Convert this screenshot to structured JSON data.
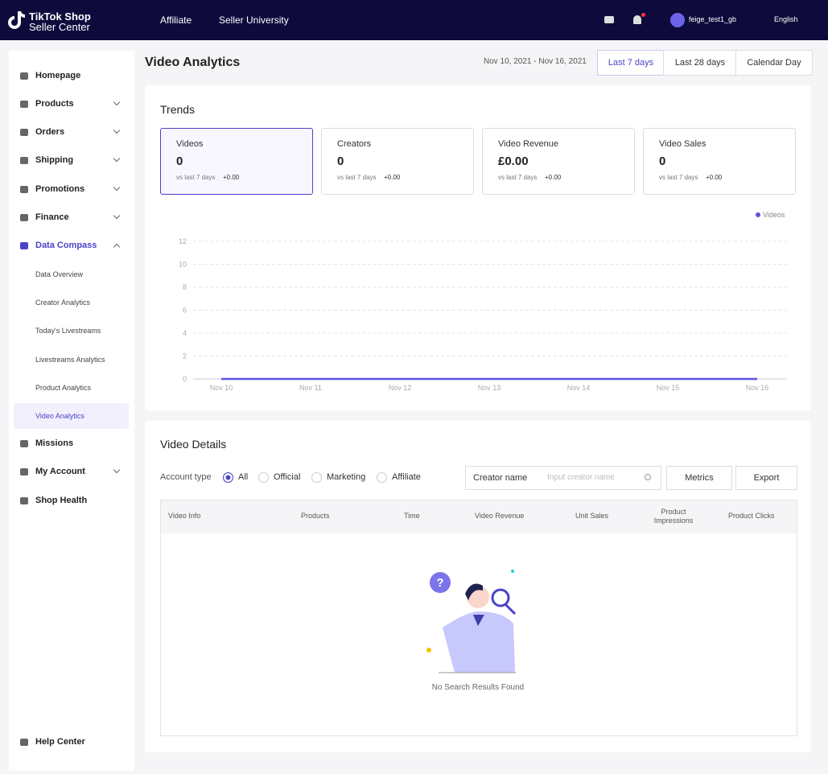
{
  "header": {
    "logo_top": "TikTok Shop",
    "logo_bottom": "Seller Center",
    "nav": [
      "Affiliate",
      "Seller University"
    ],
    "user": "feige_test1_gb",
    "language": "English"
  },
  "sidebar": {
    "items": [
      "Homepage",
      "Products",
      "Orders",
      "Shipping",
      "Promotions",
      "Finance",
      "Data Compass"
    ],
    "sub_items": [
      "Data Overview",
      "Creator Analytics",
      "Today's Livestreams",
      "Livestreams Analytics",
      "Product Analytics",
      "Video Analytics"
    ],
    "bottom_items": [
      "Missions",
      "My Account",
      "Shop Health"
    ],
    "help": "Help Center"
  },
  "page": {
    "title": "Video Analytics",
    "date_range": "Nov 10, 2021 - Nov 16, 2021",
    "ranges": [
      "Last 7 days",
      "Last 28 days",
      "Calendar Day"
    ]
  },
  "trends": {
    "title": "Trends",
    "cards": [
      {
        "label": "Videos",
        "value": "0",
        "compare": "vs last 7 days",
        "delta": "+0.00"
      },
      {
        "label": "Creators",
        "value": "0",
        "compare": "vs last 7 days",
        "delta": "+0.00"
      },
      {
        "label": "Video Revenue",
        "value": "£0.00",
        "compare": "vs last 7 days",
        "delta": "+0.00"
      },
      {
        "label": "Video Sales",
        "value": "0",
        "compare": "vs last 7 days",
        "delta": "+0.00"
      }
    ]
  },
  "chart_data": {
    "type": "line",
    "categories": [
      "Nov 10",
      "Nov 11",
      "Nov 12",
      "Nov 13",
      "Nov 14",
      "Nov 15",
      "Nov 16"
    ],
    "series": [
      {
        "name": "Videos",
        "color": "#5b52e0",
        "values": [
          0,
          0,
          0,
          0,
          0,
          0,
          0
        ]
      }
    ],
    "ylim": [
      0,
      12
    ],
    "yticks": [
      0,
      2,
      4,
      6,
      8,
      10,
      12
    ],
    "grid": true,
    "legend": "top-right"
  },
  "details": {
    "title": "Video Details",
    "account_type": "Account type",
    "options": [
      "All",
      "Official",
      "Marketing",
      "Affiliate"
    ],
    "filter": "Creator name",
    "placeholder": "Input creator name",
    "buttons": [
      "Metrics",
      "Export"
    ],
    "columns": [
      "Video Info",
      "Products",
      "Time",
      "Video Revenue",
      "Unit Sales",
      "Product Impressions",
      "Product Clicks"
    ],
    "empty": "No Search Results Found"
  }
}
